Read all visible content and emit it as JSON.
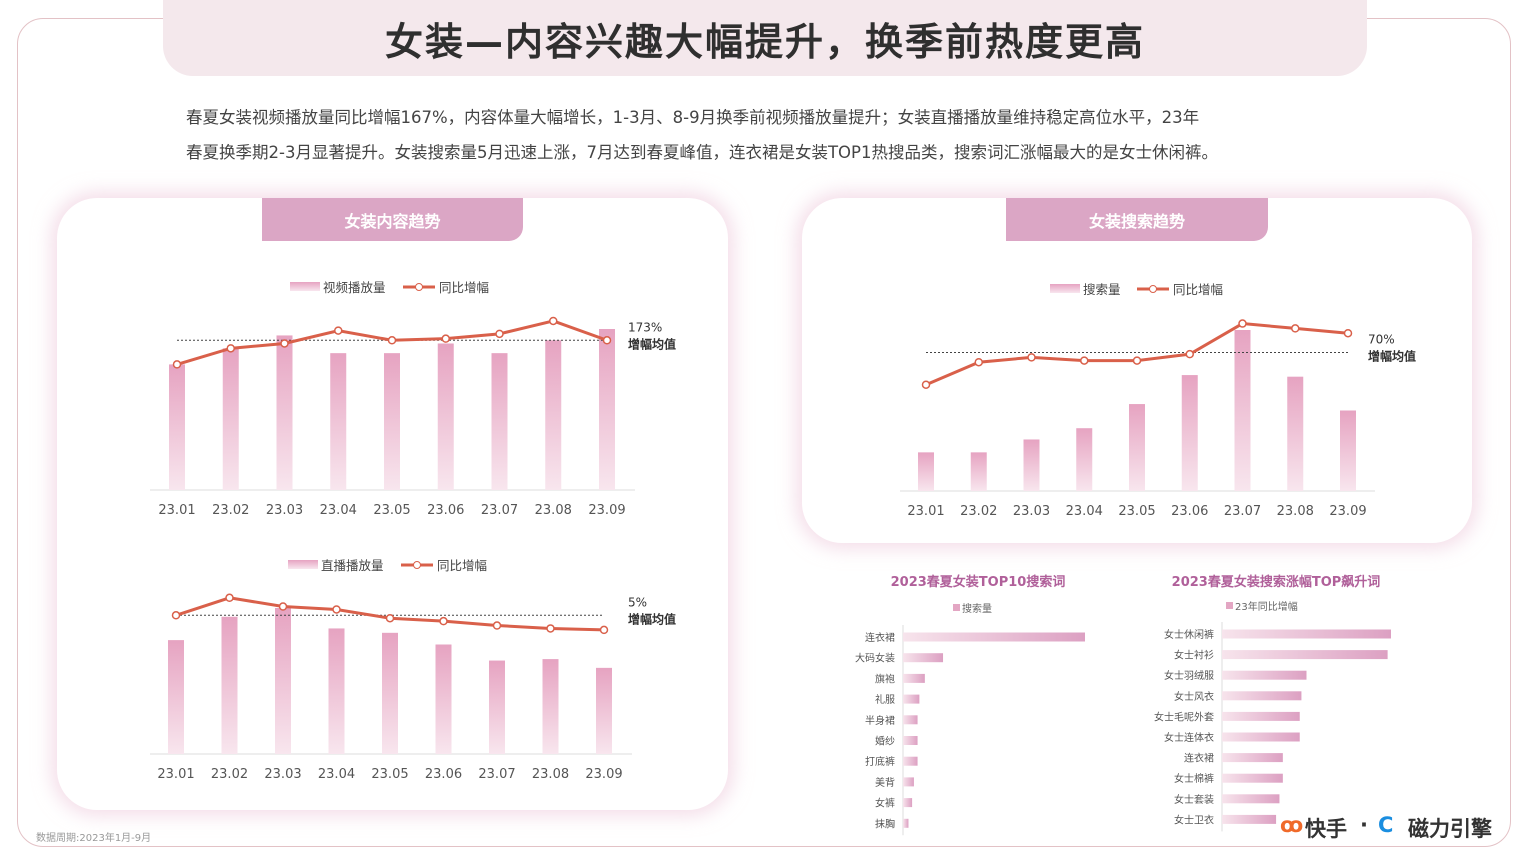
{
  "title": "女装—内容兴趣大幅提升，换季前热度更高",
  "summary": [
    "春夏女装视频播放量同比增幅167%，内容体量大幅增长，1-3月、8-9月换季前视频播放量提升；女装直播播放量维持稳定高位水平，23年",
    "春夏换季期2-3月显著提升。女装搜索量5月迅速上涨，7月达到春夏峰值，连衣裙是女装TOP1热搜品类，搜索词汇涨幅最大的是女士休闲裤。"
  ],
  "left_panel_title": "女装内容趋势",
  "right_panel_title": "女装搜索趋势",
  "footnote": "数据周期:2023年1月-9月",
  "logos": {
    "kuaishou": "快手",
    "separator": "·",
    "cili": "磁力引擎"
  },
  "colors": {
    "bar": "#e8a9c4",
    "line": "#d9604a",
    "tab": "#dba6c5"
  },
  "chart_data": [
    {
      "type": "bar+line",
      "categories": [
        "23.01",
        "23.02",
        "23.03",
        "23.04",
        "23.05",
        "23.06",
        "23.07",
        "23.08",
        "23.09"
      ],
      "series": [
        {
          "name": "视频播放量",
          "type": "bar",
          "values": [
            78,
            88,
            96,
            85,
            85,
            91,
            85,
            93,
            100
          ]
        },
        {
          "name": "同比增幅",
          "type": "line",
          "values": [
            78,
            88,
            91,
            99,
            93,
            94,
            97,
            105,
            93
          ]
        }
      ],
      "reference_line": {
        "value": 93,
        "label": "173%",
        "label2": "增幅均值"
      },
      "ylim": [
        0,
        110
      ],
      "units": "relative index",
      "legend": "top"
    },
    {
      "type": "bar+line",
      "categories": [
        "23.01",
        "23.02",
        "23.03",
        "23.04",
        "23.05",
        "23.06",
        "23.07",
        "23.08",
        "23.09"
      ],
      "series": [
        {
          "name": "直播播放量",
          "type": "bar",
          "values": [
            78,
            94,
            100,
            86,
            83,
            75,
            64,
            65,
            59
          ]
        },
        {
          "name": "同比增幅",
          "type": "line",
          "values": [
            95,
            107,
            101,
            99,
            93,
            91,
            88,
            86,
            85
          ]
        }
      ],
      "reference_line": {
        "value": 95,
        "label": "5%",
        "label2": "增幅均值"
      },
      "ylim": [
        0,
        110
      ],
      "units": "relative index",
      "legend": "top"
    },
    {
      "type": "bar+line",
      "categories": [
        "23.01",
        "23.02",
        "23.03",
        "23.04",
        "23.05",
        "23.06",
        "23.07",
        "23.08",
        "23.09"
      ],
      "series": [
        {
          "name": "搜索量",
          "type": "bar",
          "values": [
            24,
            24,
            32,
            39,
            54,
            72,
            100,
            71,
            50
          ]
        },
        {
          "name": "同比增幅",
          "type": "line",
          "values": [
            66,
            80,
            83,
            81,
            81,
            85,
            104,
            101,
            98
          ]
        }
      ],
      "reference_line": {
        "value": 86,
        "label": "70%",
        "label2": "增幅均值"
      },
      "ylim": [
        0,
        110
      ],
      "units": "relative index",
      "legend": "top"
    },
    {
      "type": "hbar",
      "title": "2023春夏女装TOP10搜索词",
      "legend_label": "搜索量",
      "categories": [
        "连衣裙",
        "大码女装",
        "旗袍",
        "礼服",
        "半身裙",
        "婚纱",
        "打底裤",
        "美背",
        "女裤",
        "抹胸"
      ],
      "values": [
        100,
        22,
        12,
        9,
        8,
        8,
        8,
        6,
        5,
        3
      ],
      "units": "relative index"
    },
    {
      "type": "hbar",
      "title": "2023春夏女装搜索涨幅TOP飙升词",
      "legend_label": "23年同比增幅",
      "categories": [
        "女士休闲裤",
        "女士衬衫",
        "女士羽绒服",
        "女士风衣",
        "女士毛呢外套",
        "女士连体衣",
        "连衣裙",
        "女士棉裤",
        "女士套装",
        "女士卫衣"
      ],
      "values": [
        100,
        98,
        50,
        47,
        46,
        46,
        36,
        36,
        34,
        32
      ],
      "units": "relative index"
    }
  ]
}
